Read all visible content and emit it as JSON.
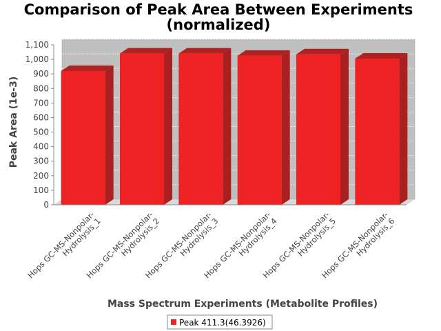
{
  "chart_data": {
    "type": "bar",
    "title_line1": "Comparison of Peak Area Between Experiments",
    "title_line2": "(normalized)",
    "xlabel": "Mass Spectrum Experiments (Metabolite Profiles)",
    "ylabel": "Peak Area (1e-3)",
    "categories": [
      [
        "Hops GC-MS-Nonpolar-",
        "Hydrolysis_1"
      ],
      [
        "Hops GC-MS-Nonpolar-",
        "Hydrolysis_2"
      ],
      [
        "Hops GC-MS-Nonpolar-",
        "Hydrolysis_3"
      ],
      [
        "Hops GC-MS-Nonpolar-",
        "Hydrolysis_4"
      ],
      [
        "Hops GC-MS-Nonpolar-",
        "Hydrolysis_5"
      ],
      [
        "Hops GC-MS-Nonpolar-",
        "Hydrolysis_6"
      ]
    ],
    "series": [
      {
        "name": "Peak 411.3(46.3926)",
        "color": "#ee2222",
        "values": [
          920,
          1040,
          1040,
          1025,
          1035,
          1005
        ]
      }
    ],
    "ylim": [
      0,
      1100
    ],
    "yticks": [
      0,
      100,
      200,
      300,
      400,
      500,
      600,
      700,
      800,
      900,
      1000,
      1100
    ],
    "ytick_labels": [
      "0",
      "100",
      "200",
      "300",
      "400",
      "500",
      "600",
      "700",
      "800",
      "900",
      "1,000",
      "1,100"
    ],
    "grid": true,
    "legend_position": "bottom",
    "colors": {
      "plot_bg": "#c0c0c0",
      "bar_face": "#ee2222",
      "bar_top": "#b02222",
      "bar_side": "#a82020"
    }
  }
}
